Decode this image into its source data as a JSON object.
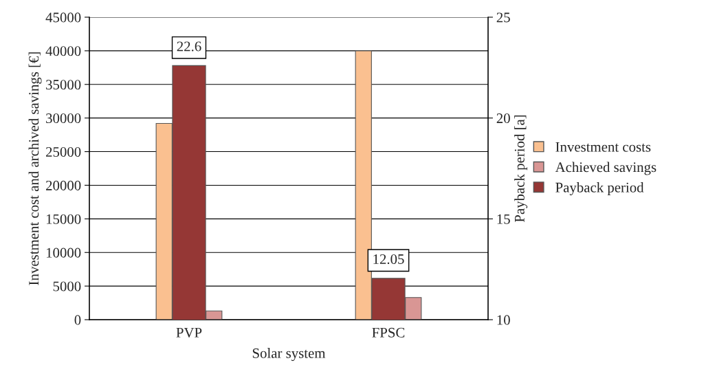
{
  "chart_data": {
    "type": "bar",
    "xlabel": "Solar system",
    "ylabel": "Investment cost and archived savings [€]",
    "y2label": "Payback period [a]",
    "categories": [
      "PVP",
      "FPSC"
    ],
    "series": [
      {
        "name": "Investment costs",
        "color": "#fac090",
        "values": [
          29200,
          40000
        ]
      },
      {
        "name": "Achieved savings",
        "color": "#d99694",
        "values": [
          1300,
          3300
        ]
      },
      {
        "name": "Payback period",
        "color": "#953735",
        "values": [
          22.6,
          12.05
        ],
        "axis": "y2",
        "value_labels": [
          "22.6",
          "12.05"
        ]
      }
    ],
    "ylim": [
      0,
      45000
    ],
    "yticks": [
      0,
      5000,
      10000,
      15000,
      20000,
      25000,
      30000,
      35000,
      40000,
      45000
    ],
    "y2lim": [
      10,
      25
    ],
    "y2ticks": [
      10,
      15,
      20,
      25
    ],
    "grid": "y",
    "legend": "right"
  }
}
